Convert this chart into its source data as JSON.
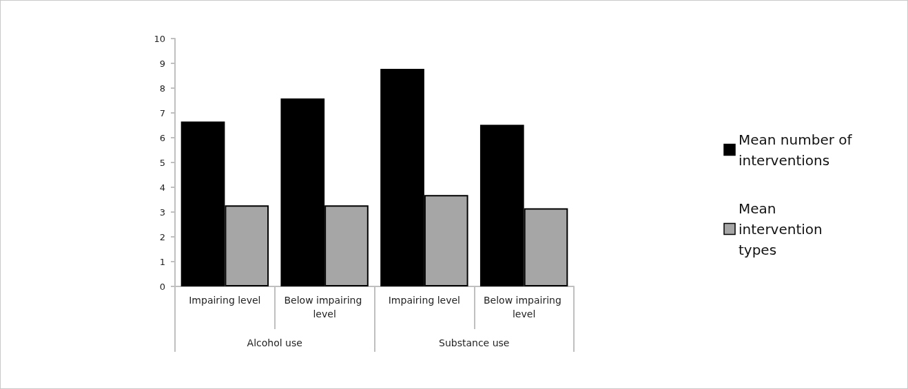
{
  "chart_data": {
    "type": "bar",
    "categories": [
      "Impairing level",
      "Below impairing level",
      "Impairing level",
      "Below impairing level"
    ],
    "annotations": [
      "Alcohol use",
      "Substance use"
    ],
    "series": [
      {
        "name": "Mean number of interventions",
        "color": "#000000",
        "values": [
          6.65,
          7.58,
          8.78,
          6.52
        ]
      },
      {
        "name": "Mean intervention types",
        "color": "#a6a6a6",
        "values": [
          3.27,
          3.27,
          3.69,
          3.15
        ]
      }
    ],
    "ylim": [
      0,
      10
    ],
    "yticks": [
      0,
      1,
      2,
      3,
      4,
      5,
      6,
      7,
      8,
      9,
      10
    ],
    "grid": false,
    "legend": "right"
  }
}
